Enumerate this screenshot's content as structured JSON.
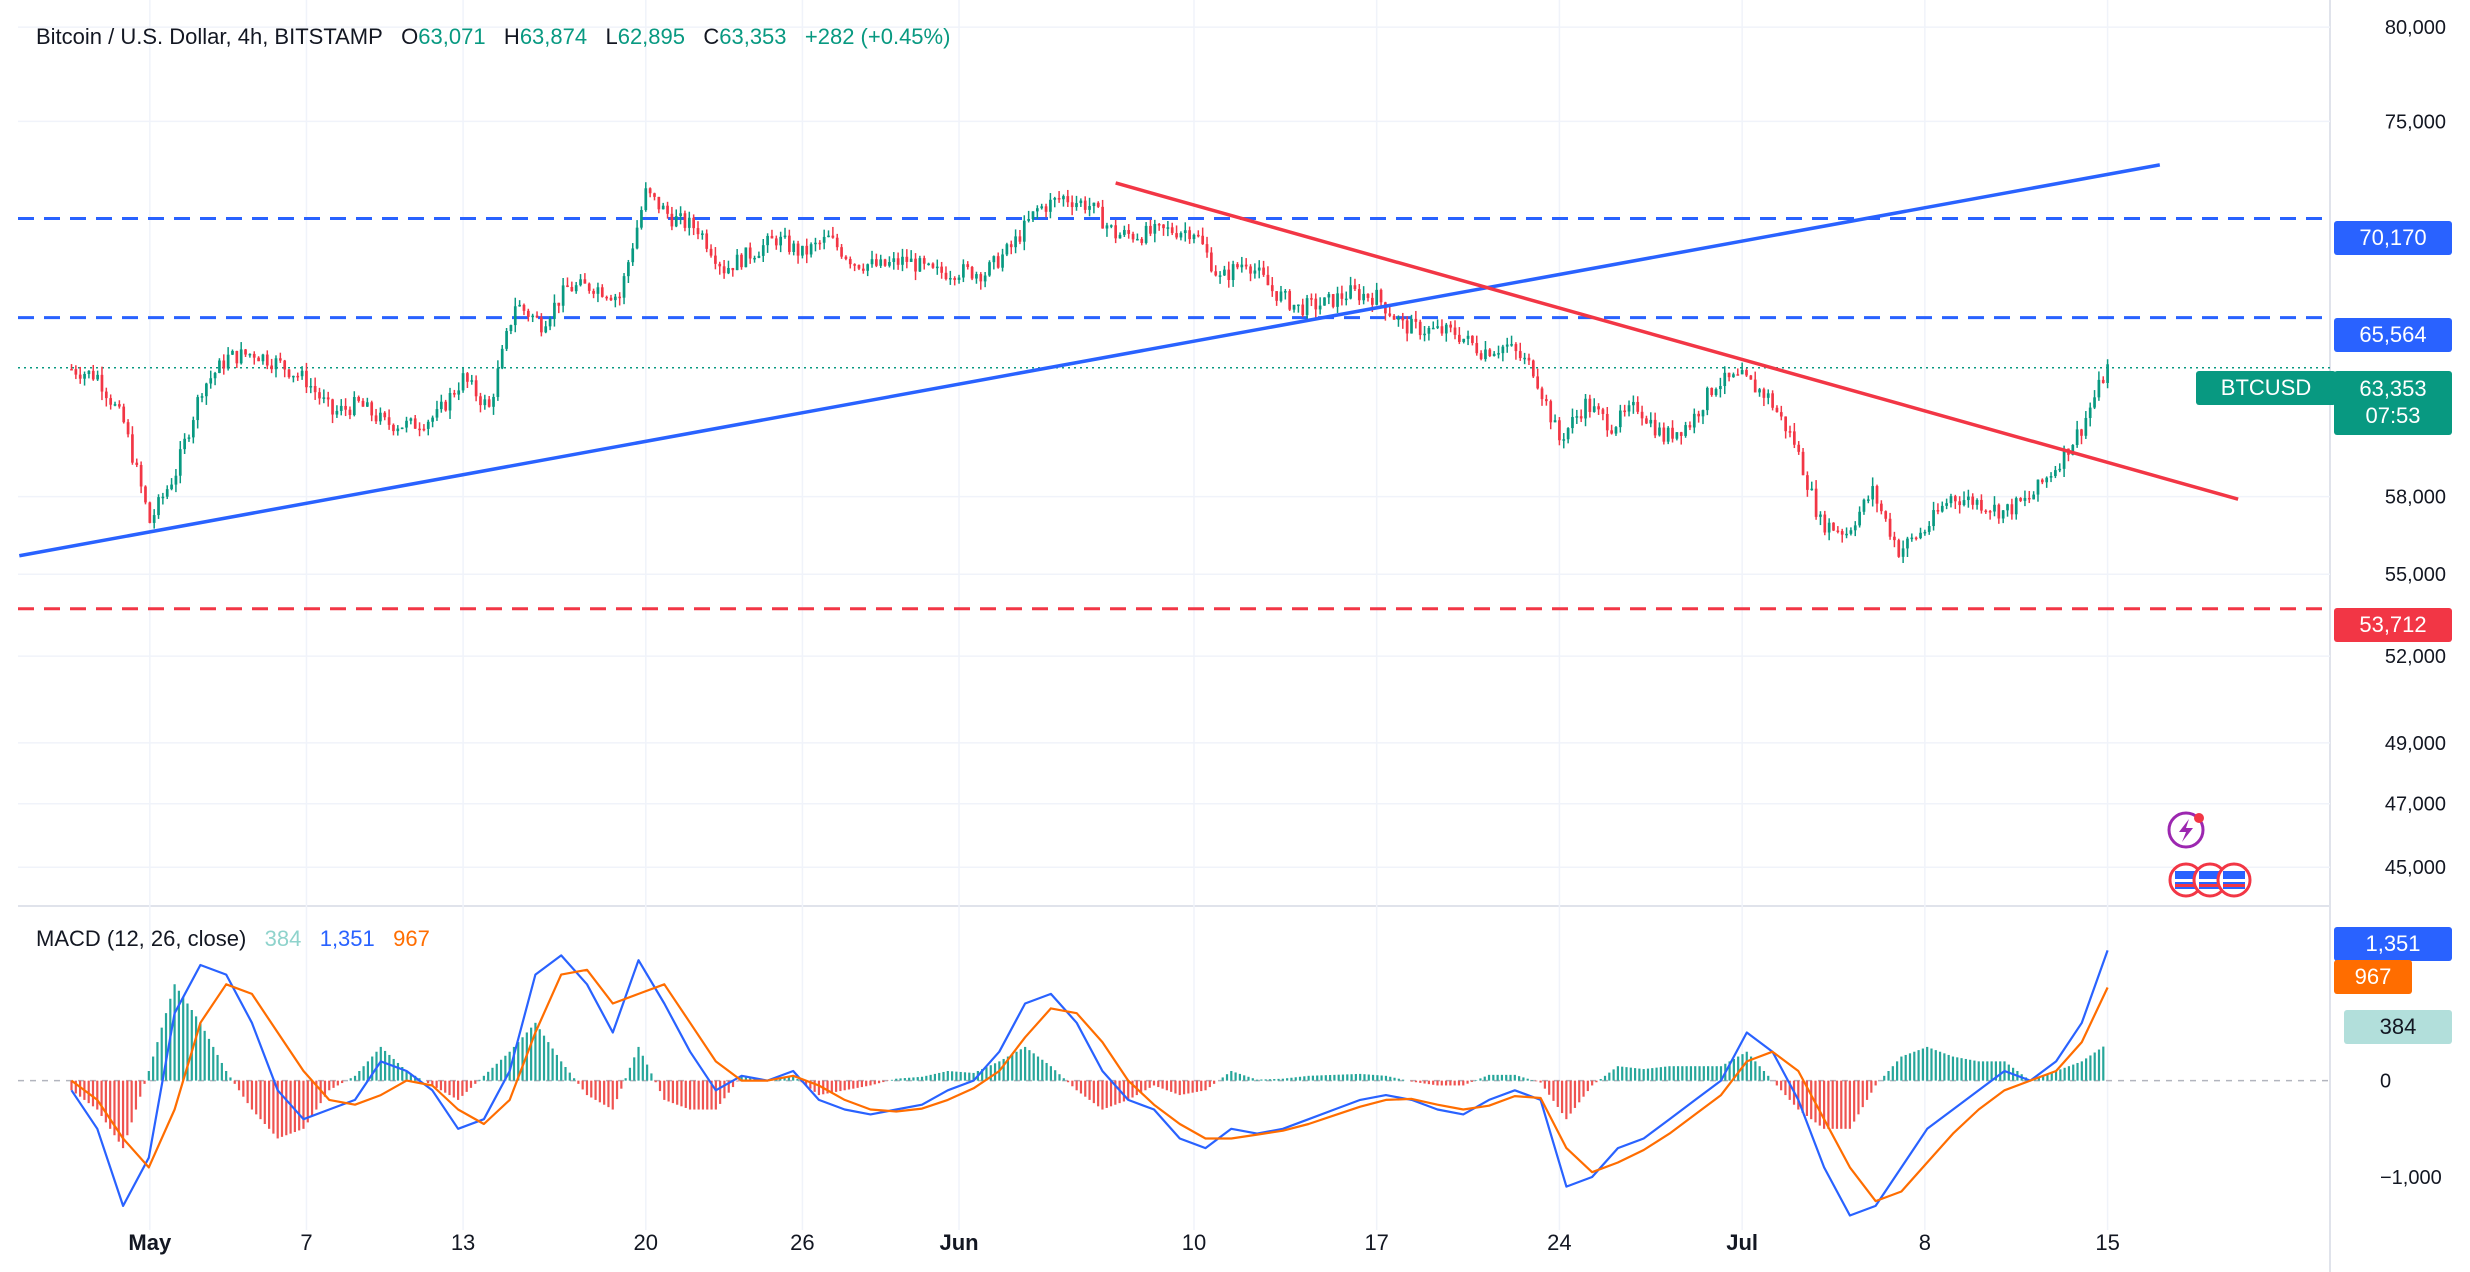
{
  "header": {
    "symbol_title": "Bitcoin / U.S. Dollar, 4h, BITSTAMP",
    "o_label": "O",
    "o_value": "63,071",
    "h_label": "H",
    "h_value": "63,874",
    "l_label": "L",
    "l_value": "62,895",
    "c_label": "C",
    "c_value": "63,353",
    "change": "+282 (+0.45%)"
  },
  "price_tags": {
    "resistance_high": "70,170",
    "resistance_mid": "65,564",
    "symbol": "BTCUSD",
    "last_price": "63,353",
    "countdown": "07:53",
    "support": "53,712"
  },
  "macd": {
    "title": "MACD (12, 26, close)",
    "histogram": "384",
    "macd": "1,351",
    "signal": "967"
  },
  "colors": {
    "up": "#089981",
    "down": "#f23645",
    "blue_line": "#2962ff",
    "red_line": "#f23645",
    "macd_line": "#2962ff",
    "signal_line": "#ff6d00",
    "hist_up": "#26a69a",
    "hist_down": "#ef5350"
  },
  "icons": [
    "lightning-event-icon",
    "us-flag-event-icon"
  ],
  "chart_data": {
    "type": "candlestick",
    "timeframe": "4h",
    "x_tick_labels": [
      "May",
      "7",
      "13",
      "20",
      "26",
      "Jun",
      "10",
      "17",
      "24",
      "Jul",
      "8",
      "15"
    ],
    "y_tick_labels": [
      "80,000",
      "75,000",
      "70,170",
      "65,564",
      "63,353",
      "58,000",
      "55,000",
      "53,712",
      "52,000",
      "49,000",
      "47,000",
      "45,000"
    ],
    "y_scale": "log",
    "y_range": [
      44000,
      81500
    ],
    "close_path": [
      [
        "Apr 28",
        63300
      ],
      [
        "Apr 29",
        63000
      ],
      [
        "Apr 30",
        61000
      ],
      [
        "May 1",
        57000
      ],
      [
        "May 2",
        59000
      ],
      [
        "May 3",
        62500
      ],
      [
        "May 4",
        63800
      ],
      [
        "May 5",
        64000
      ],
      [
        "May 6",
        63500
      ],
      [
        "May 7",
        62800
      ],
      [
        "May 8",
        61400
      ],
      [
        "May 9",
        61800
      ],
      [
        "May 10",
        61000
      ],
      [
        "May 11",
        60900
      ],
      [
        "May 12",
        61300
      ],
      [
        "May 13",
        62900
      ],
      [
        "May 14",
        61600
      ],
      [
        "May 15",
        66200
      ],
      [
        "May 16",
        65300
      ],
      [
        "May 17",
        66900
      ],
      [
        "May 18",
        67000
      ],
      [
        "May 19",
        66500
      ],
      [
        "May 20",
        71400
      ],
      [
        "May 21",
        70200
      ],
      [
        "May 22",
        69700
      ],
      [
        "May 23",
        67800
      ],
      [
        "May 24",
        68500
      ],
      [
        "May 25",
        69200
      ],
      [
        "May 26",
        68500
      ],
      [
        "May 27",
        69200
      ],
      [
        "May 28",
        68100
      ],
      [
        "May 29",
        67900
      ],
      [
        "May 30",
        68200
      ],
      [
        "May 31",
        67600
      ],
      [
        "Jun 1",
        67700
      ],
      [
        "Jun 2",
        67600
      ],
      [
        "Jun 3",
        68800
      ],
      [
        "Jun 4",
        70600
      ],
      [
        "Jun 5",
        71200
      ],
      [
        "Jun 6",
        70800
      ],
      [
        "Jun 7",
        69400
      ],
      [
        "Jun 8",
        69400
      ],
      [
        "Jun 9",
        69600
      ],
      [
        "Jun 10",
        69600
      ],
      [
        "Jun 11",
        67300
      ],
      [
        "Jun 12",
        68200
      ],
      [
        "Jun 13",
        66800
      ],
      [
        "Jun 14",
        66000
      ],
      [
        "Jun 15",
        66200
      ],
      [
        "Jun 16",
        66700
      ],
      [
        "Jun 17",
        66500
      ],
      [
        "Jun 18",
        65200
      ],
      [
        "Jun 19",
        65000
      ],
      [
        "Jun 20",
        64900
      ],
      [
        "Jun 21",
        64100
      ],
      [
        "Jun 22",
        64300
      ],
      [
        "Jun 23",
        63300
      ],
      [
        "Jun 24",
        60300
      ],
      [
        "Jun 25",
        61800
      ],
      [
        "Jun 26",
        60900
      ],
      [
        "Jun 27",
        61700
      ],
      [
        "Jun 28",
        60400
      ],
      [
        "Jun 29",
        61000
      ],
      [
        "Jun 30",
        62700
      ],
      [
        "Jul 1",
        62900
      ],
      [
        "Jul 2",
        62100
      ],
      [
        "Jul 3",
        60200
      ],
      [
        "Jul 4",
        57000
      ],
      [
        "Jul 5",
        56600
      ],
      [
        "Jul 6",
        58200
      ],
      [
        "Jul 7",
        55900
      ],
      [
        "Jul 8",
        56700
      ],
      [
        "Jul 9",
        58000
      ],
      [
        "Jul 10",
        57800
      ],
      [
        "Jul 11",
        57400
      ],
      [
        "Jul 12",
        57900
      ],
      [
        "Jul 13",
        59200
      ],
      [
        "Jul 14",
        60800
      ],
      [
        "Jul 15",
        63353
      ]
    ],
    "levels": [
      {
        "value": 70170,
        "color": "#2962ff",
        "style": "dashed"
      },
      {
        "value": 65564,
        "color": "#2962ff",
        "style": "dashed"
      },
      {
        "value": 53712,
        "color": "#f23645",
        "style": "dashed"
      }
    ],
    "trendlines": [
      {
        "color": "#2962ff",
        "from": [
          "Apr 26",
          55700
        ],
        "to": [
          "Jul 17",
          72800
        ]
      },
      {
        "color": "#f23645",
        "from": [
          "Jun 7",
          71900
        ],
        "to": [
          "Jul 20",
          57900
        ]
      }
    ],
    "macd_panel": {
      "y_tick_labels": [
        "1,351",
        "967",
        "384",
        "0",
        "−1,000"
      ],
      "macd": [
        -100,
        -500,
        -1300,
        -800,
        700,
        1200,
        1100,
        600,
        -100,
        -400,
        -300,
        -200,
        200,
        100,
        -100,
        -500,
        -400,
        100,
        1100,
        1300,
        1000,
        500,
        1250,
        800,
        300,
        -100,
        50,
        0,
        100,
        -200,
        -300,
        -350,
        -300,
        -250,
        -100,
        0,
        300,
        800,
        900,
        600,
        100,
        -200,
        -300,
        -600,
        -700,
        -500,
        -550,
        -500,
        -400,
        -300,
        -200,
        -150,
        -200,
        -300,
        -350,
        -200,
        -100,
        -200,
        -1100,
        -1000,
        -700,
        -600,
        -400,
        -200,
        0,
        500,
        300,
        -200,
        -900,
        -1400,
        -1300,
        -900,
        -500,
        -300,
        -100,
        100,
        0,
        200,
        600,
        1351
      ],
      "signal": [
        0,
        -200,
        -600,
        -900,
        -300,
        600,
        1000,
        900,
        500,
        100,
        -200,
        -250,
        -150,
        0,
        -50,
        -300,
        -450,
        -200,
        500,
        1100,
        1150,
        800,
        900,
        1000,
        600,
        200,
        0,
        0,
        50,
        -50,
        -200,
        -300,
        -320,
        -290,
        -200,
        -80,
        100,
        450,
        750,
        700,
        400,
        0,
        -250,
        -450,
        -600,
        -600,
        -560,
        -520,
        -450,
        -360,
        -270,
        -200,
        -190,
        -250,
        -300,
        -260,
        -160,
        -180,
        -700,
        -950,
        -850,
        -720,
        -550,
        -350,
        -150,
        200,
        300,
        100,
        -400,
        -900,
        -1250,
        -1150,
        -850,
        -550,
        -300,
        -100,
        0,
        100,
        400,
        967
      ]
    }
  }
}
